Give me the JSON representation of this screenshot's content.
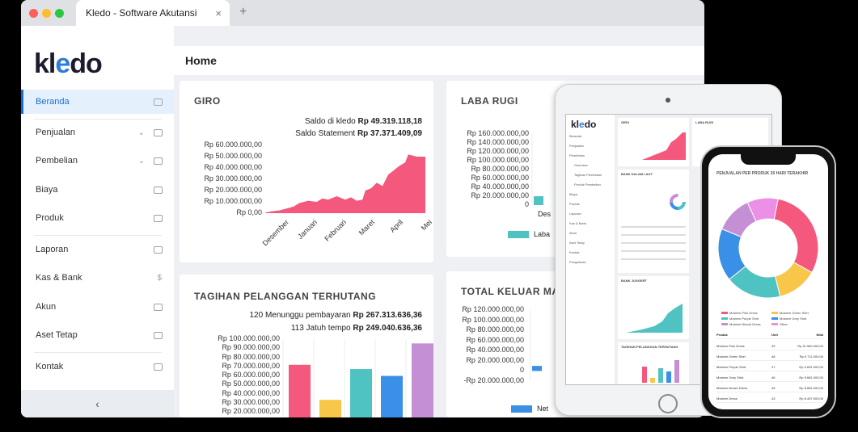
{
  "browser": {
    "tab_title": "Kledo - Software Akutansi",
    "close_glyph": "×",
    "new_tab_glyph": "+"
  },
  "sidebar": {
    "logo_pre": "kl",
    "logo_e": "e",
    "logo_post": "do",
    "items": [
      {
        "label": "Beranda",
        "icon": "home-icon"
      },
      {
        "label": "Penjualan",
        "icon": "basket-icon"
      },
      {
        "label": "Pembelian",
        "icon": "bag-icon"
      },
      {
        "label": "Biaya",
        "icon": "card-icon"
      },
      {
        "label": "Produk",
        "icon": "boxes-icon"
      },
      {
        "label": "Laporan",
        "icon": "chart-icon"
      },
      {
        "label": "Kas & Bank",
        "icon": "dollar-icon"
      },
      {
        "label": "Akun",
        "icon": "ledger-icon"
      },
      {
        "label": "Aset Tetap",
        "icon": "building-icon"
      },
      {
        "label": "Kontak",
        "icon": "contact-icon"
      }
    ],
    "collapse_glyph": "‹"
  },
  "header": {
    "title": "Home"
  },
  "giro": {
    "title": "GIRO",
    "saldo_kledo_label": "Saldo di kledo",
    "saldo_kledo_value": "Rp 49.319.118,18",
    "saldo_statement_label": "Saldo Statement",
    "saldo_statement_value": "Rp 37.371.409,09"
  },
  "laba_rugi": {
    "title": "LABA RUGI",
    "legend": "Laba"
  },
  "tagihan": {
    "title": "TAGIHAN PELANGGAN TERHUTANG",
    "menunggu_label": "120 Menunggu pembayaran",
    "menunggu_value": "Rp 267.313.636,36",
    "jatuh_tempo_label": "113 Jatuh tempo",
    "jatuh_tempo_value": "Rp 249.040.636,36"
  },
  "total_keluar": {
    "title": "TOTAL KELUAR MASUK",
    "legend": "Net"
  },
  "colors": {
    "accent": "#1a6ed1",
    "pink": "#f4587c",
    "teal": "#4ec3c1",
    "blue": "#3a8fe6",
    "yellow": "#f8c74a",
    "purple": "#c48fd4"
  },
  "chart_data": [
    {
      "type": "area",
      "name": "giro",
      "categories": [
        "Desember",
        "Januari",
        "Februari",
        "Maret",
        "April",
        "Mei"
      ],
      "ytick_labels": [
        "Rp 60.000.000,00",
        "Rp 50.000.000,00",
        "Rp 40.000.000,00",
        "Rp 30.000.000,00",
        "Rp 20.000.000,00",
        "Rp 10.000.000,00",
        "Rp 0,00"
      ],
      "ylim": [
        0,
        60000000
      ],
      "x": [
        0,
        0.2,
        0.5,
        0.8,
        1.0,
        1.2,
        1.5,
        1.8,
        2.0,
        2.2,
        2.5,
        2.8,
        3.0,
        3.2,
        3.4,
        3.5,
        3.7,
        3.9,
        4.1,
        4.3,
        4.5,
        4.7,
        4.9,
        5.0,
        5.3,
        5.6
      ],
      "y": [
        500000,
        1500000,
        2500000,
        4500000,
        6000000,
        9000000,
        11000000,
        10000000,
        13000000,
        12000000,
        15000000,
        12000000,
        14000000,
        11000000,
        12000000,
        20000000,
        22000000,
        27000000,
        24000000,
        34000000,
        38000000,
        42000000,
        45000000,
        52000000,
        50000000,
        50000000
      ],
      "color": "#f4587c"
    },
    {
      "type": "bar",
      "name": "laba-rugi",
      "ytick_labels": [
        "Rp 160.000.000,00",
        "Rp 140.000.000,00",
        "Rp 120.000.000,00",
        "Rp 100.000.000,00",
        "Rp 80.000.000,00",
        "Rp 60.000.000,00",
        "Rp 40.000.000,00",
        "Rp 20.000.000,00",
        "0"
      ],
      "ylim": [
        0,
        160000000
      ],
      "categories": [
        "Des"
      ],
      "values": [
        20000000
      ],
      "legend": "Laba"
    },
    {
      "type": "bar",
      "name": "tagihan",
      "ytick_labels": [
        "Rp 100.000.000,00",
        "Rp 90.000.000,00",
        "Rp 80.000.000,00",
        "Rp 70.000.000,00",
        "Rp 60.000.000,00",
        "Rp 50.000.000,00",
        "Rp 40.000.000,00",
        "Rp 30.000.000,00",
        "Rp 20.000.000,00"
      ],
      "ylim": [
        15000000,
        100000000
      ],
      "values": [
        70000000,
        29000000,
        65000000,
        57000000,
        95000000
      ],
      "colors": [
        "#f4587c",
        "#f8c74a",
        "#4ec3c1",
        "#3a8fe6",
        "#c48fd4"
      ]
    },
    {
      "type": "bar",
      "name": "total-keluar-masuk",
      "ytick_labels": [
        "Rp 120.000.000,00",
        "Rp 100.000.000,00",
        "Rp 80.000.000,00",
        "Rp 60.000.000,00",
        "Rp 40.000.000,00",
        "Rp 20.000.000,00",
        "0",
        "-Rp 20.000.000,00"
      ],
      "ylim": [
        -20000000,
        120000000
      ],
      "values": [
        10000000
      ],
      "legend": "Net"
    }
  ],
  "tablet": {
    "logo_pre": "kl",
    "logo_e": "e",
    "logo_post": "do",
    "nav": [
      "Beranda",
      "Penjualan",
      "Pembelian",
      "Overview",
      "Tagihan Pembelian",
      "Produk Pembelian",
      "Biaya",
      "Produk",
      "Laporan",
      "Kas & Bank",
      "Akun",
      "Aset Tetap",
      "Kontak",
      "Pengaturan"
    ],
    "cards": [
      "GIRO",
      "LABA RUGI",
      "BANK DALAM LAUT",
      "BANK JUGGERT",
      "TAGIHAN PELANGGAN TERHUTANG"
    ]
  },
  "phone": {
    "title": "PENJUALAN PER PRODUK 30 HARI TERAKHIR",
    "legend": [
      {
        "label": "Mostem Pink Dress",
        "color": "#f4587c"
      },
      {
        "label": "Mostem Green Shirt",
        "color": "#f8c74a"
      },
      {
        "label": "Mostem Purple Shirt",
        "color": "#4ec3c1"
      },
      {
        "label": "Mostem Grey Shirt",
        "color": "#3a8fe6"
      },
      {
        "label": "Mostem Biscuit Dress",
        "color": "#c48fd4"
      },
      {
        "label": "Other",
        "color": "#ec8fe6"
      }
    ],
    "table_head": [
      "Produk",
      "Unit",
      "Nilai"
    ],
    "rows": [
      [
        "Mostem Pink Dress",
        "49",
        "Rp 31.560.000,00"
      ],
      [
        "Mostem Green Shirt",
        "48",
        "Rp 9.711.000,00"
      ],
      [
        "Mostem Purple Shirt",
        "47",
        "Rp 9.691.000,00"
      ],
      [
        "Mostem Grey Shirt",
        "46",
        "Rp 9.681.000,00"
      ],
      [
        "Mostem Brown Dress",
        "45",
        "Rp 8.881.000,00"
      ],
      [
        "Mostem Dress",
        "43",
        "Rp 8.497.000,00"
      ]
    ],
    "donut": [
      30,
      13,
      18,
      17,
      12,
      10
    ]
  }
}
